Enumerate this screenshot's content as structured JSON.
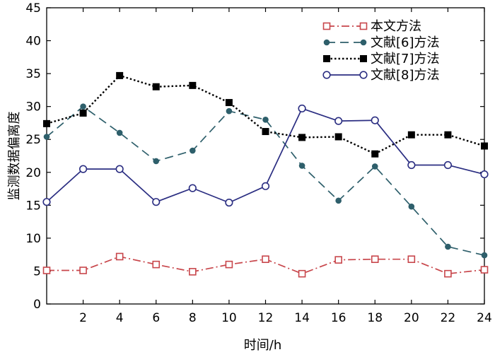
{
  "chart_data": {
    "type": "line",
    "xlabel": "时间/h",
    "ylabel": "监测数据偏离度",
    "xlim": [
      0,
      24
    ],
    "ylim": [
      0,
      45
    ],
    "x_ticks": [
      2,
      4,
      6,
      8,
      10,
      12,
      14,
      16,
      18,
      20,
      22,
      24
    ],
    "y_ticks": [
      0,
      5,
      10,
      15,
      20,
      25,
      30,
      35,
      40,
      45
    ],
    "grid": false,
    "legend_position": "top-right",
    "x": [
      0,
      2,
      4,
      6,
      8,
      10,
      12,
      14,
      16,
      18,
      20,
      22,
      24
    ],
    "series": [
      {
        "name": "本文方法",
        "color": "#c8464b",
        "line_style": "dash-dot",
        "marker": "open-square",
        "values": [
          5.1,
          5.1,
          7.2,
          6.0,
          4.9,
          6.0,
          6.8,
          4.6,
          6.7,
          6.8,
          6.8,
          4.6,
          5.2
        ]
      },
      {
        "name": "文献[6]方法",
        "color": "#2e5f6b",
        "line_style": "long-dash",
        "marker": "filled-circle",
        "values": [
          25.4,
          30.0,
          26.0,
          21.7,
          23.3,
          29.3,
          28.0,
          21.0,
          15.7,
          20.9,
          14.8,
          8.7,
          7.4
        ]
      },
      {
        "name": "文献[7]方法",
        "color": "#000000",
        "line_style": "dotted",
        "marker": "filled-square",
        "values": [
          27.4,
          29.0,
          34.7,
          33.0,
          33.2,
          30.6,
          26.2,
          25.3,
          25.4,
          22.8,
          25.7,
          25.7,
          24.0
        ]
      },
      {
        "name": "文献[8]方法",
        "color": "#2b2e82",
        "line_style": "solid",
        "marker": "open-circle",
        "values": [
          15.5,
          20.5,
          20.5,
          15.5,
          17.6,
          15.4,
          17.9,
          29.7,
          27.8,
          27.9,
          21.1,
          21.1,
          19.7
        ]
      }
    ]
  }
}
